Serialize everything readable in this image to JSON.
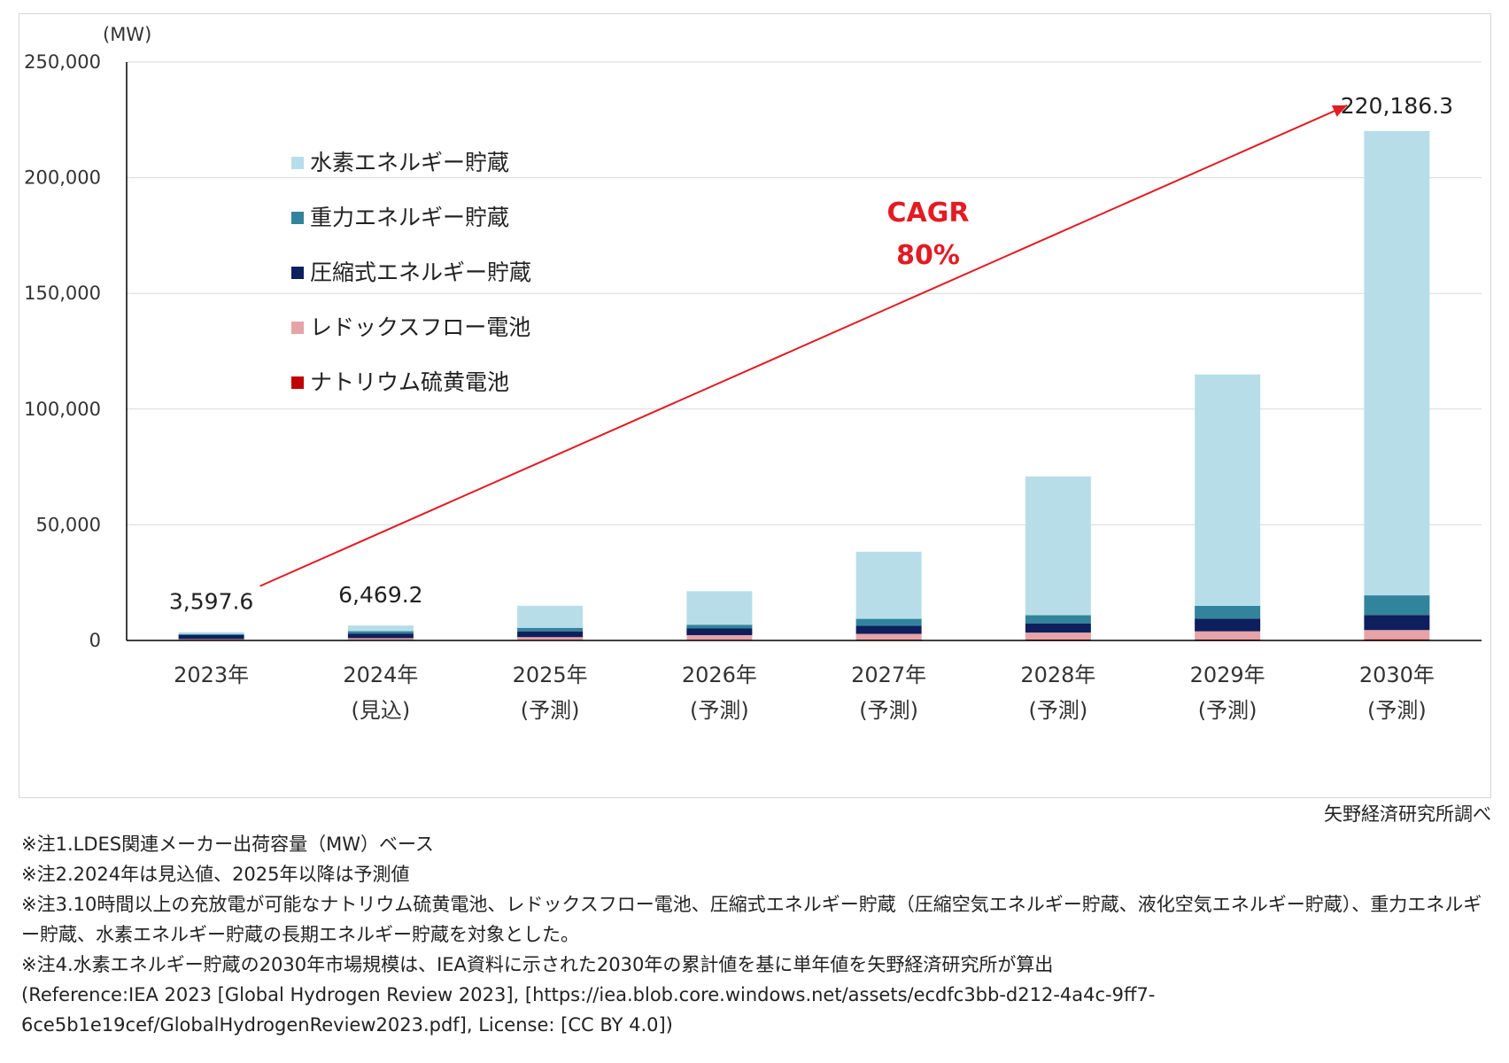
{
  "chart_data": {
    "type": "bar",
    "stacked": true,
    "unit_label": "(MW)",
    "ylim": [
      0,
      250000
    ],
    "yticks": [
      0,
      50000,
      100000,
      150000,
      200000,
      250000
    ],
    "ytick_labels": [
      "0",
      "50,000",
      "100,000",
      "150,000",
      "200,000",
      "250,000"
    ],
    "categories": [
      {
        "line1": "2023年",
        "line2": ""
      },
      {
        "line1": "2024年",
        "line2": "(見込)"
      },
      {
        "line1": "2025年",
        "line2": "(予測)"
      },
      {
        "line1": "2026年",
        "line2": "(予測)"
      },
      {
        "line1": "2027年",
        "line2": "(予測)"
      },
      {
        "line1": "2028年",
        "line2": "(予測)"
      },
      {
        "line1": "2029年",
        "line2": "(予測)"
      },
      {
        "line1": "2030年",
        "line2": "(予測)"
      }
    ],
    "series": [
      {
        "name": "ナトリウム硫黄電池",
        "color": "#c00000",
        "values": [
          150,
          200,
          250,
          300,
          350,
          400,
          450,
          500
        ]
      },
      {
        "name": "レドックスフロー電池",
        "color": "#e6a3a8",
        "values": [
          450,
          800,
          1200,
          2000,
          2500,
          3000,
          3500,
          4000
        ]
      },
      {
        "name": "圧縮式エネルギー貯蔵",
        "color": "#0d1f5c",
        "values": [
          1700,
          2000,
          2500,
          3000,
          3500,
          4000,
          5500,
          6500
        ]
      },
      {
        "name": "重力エネルギー貯蔵",
        "color": "#31849b",
        "values": [
          500,
          1000,
          1500,
          1500,
          3000,
          3500,
          5500,
          8500
        ]
      },
      {
        "name": "水素エネルギー貯蔵",
        "color": "#b7dee8",
        "values": [
          797.6,
          2469.2,
          9550,
          14500,
          29000,
          60000,
          100000,
          200686.3
        ]
      }
    ],
    "legend_order": [
      {
        "name": "水素エネルギー貯蔵",
        "color": "#b7dee8"
      },
      {
        "name": "重力エネルギー貯蔵",
        "color": "#31849b"
      },
      {
        "name": "圧縮式エネルギー貯蔵",
        "color": "#0d1f5c"
      },
      {
        "name": "レドックスフロー電池",
        "color": "#e6a3a8"
      },
      {
        "name": "ナトリウム硫黄電池",
        "color": "#c00000"
      }
    ],
    "data_labels": [
      {
        "index": 0,
        "text": "3,597.6"
      },
      {
        "index": 1,
        "text": "6,469.2"
      },
      {
        "index": 7,
        "text": "220,186.3"
      }
    ],
    "annotation": {
      "line1": "CAGR",
      "line2": "80%",
      "color": "#e31b23",
      "from_value": 3597.6,
      "to_value": 220186.3
    }
  },
  "source": "矢野経済研究所調べ",
  "notes": {
    "n1": "※注1.LDES関連メーカー出荷容量（MW）ベース",
    "n2": "※注2.2024年は見込値、2025年以降は予測値",
    "n3": "※注3.10時間以上の充放電が可能なナトリウム硫黄電池、レドックスフロー電池、圧縮式エネルギー貯蔵（圧縮空気エネルギー貯蔵、液化空気エネルギー貯蔵）、重力エネルギー貯蔵、水素エネルギー貯蔵の長期エネルギー貯蔵を対象とした。",
    "n4": "※注4.水素エネルギー貯蔵の2030年市場規模は、IEA資料に示された2030年の累計値を基に単年値を矢野経済研究所が算出",
    "n5": "(Reference:IEA 2023 [Global Hydrogen  Review 2023], [https://iea.blob.core.windows.net/assets/ecdfc3bb-d212-4a4c-9ff7-6ce5b1e19cef/GlobalHydrogenReview2023.pdf], License: [CC BY 4.0])"
  }
}
